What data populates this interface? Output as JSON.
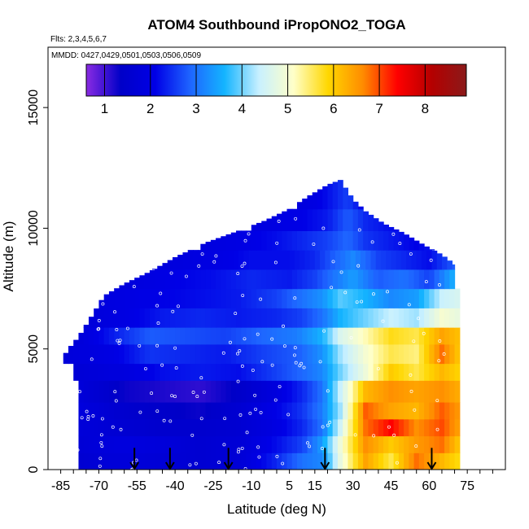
{
  "chart_data": {
    "type": "heatmap",
    "title": "ATOM4 Southbound iPropONO2_TOGA",
    "flights_note": "Flts: 2,3,4,5,6,7",
    "dates_note": "MMDD: 0427,0429,0501,0503,0506,0509",
    "xlabel": "Latitude (deg N)",
    "ylabel": "Altitude (m)",
    "xlim": [
      -90,
      90
    ],
    "ylim": [
      0,
      17500
    ],
    "x_ticks": [
      -85,
      -70,
      -55,
      -40,
      -25,
      -10,
      5,
      15,
      30,
      45,
      60,
      75
    ],
    "y_ticks": [
      0,
      5000,
      10000,
      15000
    ],
    "colorbar": {
      "min": 0.6,
      "max": 8.9,
      "ticks": [
        1,
        2,
        3,
        4,
        5,
        6,
        7,
        8
      ],
      "colors": [
        "#8a2be2",
        "#0000c8",
        "#0000e6",
        "#1e64ff",
        "#14b4ff",
        "#c8f0ff",
        "#ffffc8",
        "#ffd700",
        "#ff8c00",
        "#ff0000",
        "#b40000",
        "#8b1a1a"
      ]
    },
    "profile_arrows_lat": [
      -56,
      -42,
      -19,
      19,
      61
    ],
    "envelope_top": [
      [
        -85,
        4500
      ],
      [
        -82,
        5000
      ],
      [
        -78,
        5500
      ],
      [
        -75,
        6000
      ],
      [
        -72,
        6500
      ],
      [
        -68,
        7200
      ],
      [
        -60,
        7700
      ],
      [
        -50,
        8200
      ],
      [
        -40,
        8800
      ],
      [
        -28,
        9400
      ],
      [
        -15,
        9900
      ],
      [
        -5,
        10300
      ],
      [
        5,
        10800
      ],
      [
        12,
        11300
      ],
      [
        20,
        11800
      ],
      [
        25,
        12000
      ],
      [
        30,
        11200
      ],
      [
        35,
        10700
      ],
      [
        42,
        10200
      ],
      [
        50,
        9800
      ],
      [
        58,
        9300
      ],
      [
        65,
        8900
      ],
      [
        70,
        8500
      ]
    ],
    "layers": [
      {
        "alt": [
          0,
          700
        ],
        "lats": [
          -78,
          -60,
          -45,
          -30,
          -15,
          0,
          10,
          18,
          25,
          35,
          45,
          55,
          65,
          72
        ],
        "values": [
          1.6,
          1.8,
          1.7,
          1.6,
          1.7,
          2.4,
          3.0,
          3.2,
          4.8,
          6.4,
          5.6,
          6.8,
          6.2,
          5.8
        ]
      },
      {
        "alt": [
          700,
          1400
        ],
        "lats": [
          -78,
          -60,
          -45,
          -30,
          -15,
          0,
          10,
          18,
          25,
          35,
          45,
          55,
          65,
          72
        ],
        "values": [
          1.7,
          1.9,
          1.8,
          1.6,
          1.7,
          2.2,
          2.6,
          3.4,
          4.9,
          6.6,
          6.0,
          6.5,
          6.8,
          6.0
        ]
      },
      {
        "alt": [
          1400,
          2100
        ],
        "lats": [
          -78,
          -60,
          -45,
          -30,
          -15,
          0,
          10,
          18,
          25,
          35,
          45,
          55,
          65,
          72
        ],
        "values": [
          1.8,
          1.6,
          1.5,
          1.5,
          1.6,
          2.0,
          2.4,
          3.0,
          4.5,
          6.8,
          7.4,
          6.6,
          7.0,
          6.4
        ]
      },
      {
        "alt": [
          2100,
          2800
        ],
        "lats": [
          -78,
          -60,
          -45,
          -30,
          -15,
          0,
          10,
          18,
          25,
          35,
          45,
          55,
          65,
          72
        ],
        "values": [
          1.9,
          1.5,
          1.4,
          1.3,
          1.6,
          2.1,
          2.5,
          3.1,
          4.2,
          6.9,
          6.4,
          6.2,
          6.9,
          6.5
        ]
      },
      {
        "alt": [
          2800,
          3700
        ],
        "lats": [
          -78,
          -60,
          -45,
          -30,
          -15,
          0,
          10,
          18,
          25,
          35,
          45,
          55,
          65,
          72
        ],
        "values": [
          1.8,
          1.3,
          1.2,
          1.1,
          1.4,
          1.9,
          2.4,
          3.0,
          4.4,
          6.2,
          6.6,
          6.4,
          6.6,
          6.3
        ]
      },
      {
        "alt": [
          3700,
          4400
        ],
        "lats": [
          -80,
          -60,
          -45,
          -30,
          -15,
          0,
          10,
          18,
          25,
          35,
          45,
          55,
          65,
          72
        ],
        "values": [
          1.7,
          1.9,
          2.2,
          2.3,
          2.2,
          2.6,
          2.9,
          3.2,
          4.0,
          4.9,
          6.0,
          5.6,
          6.2,
          5.9
        ]
      },
      {
        "alt": [
          4400,
          5200
        ],
        "lats": [
          -84,
          -65,
          -50,
          -35,
          -20,
          -5,
          8,
          18,
          25,
          35,
          45,
          55,
          65,
          72
        ],
        "values": [
          1.8,
          2.0,
          2.5,
          2.4,
          2.3,
          2.6,
          2.8,
          3.3,
          4.2,
          5.0,
          5.6,
          5.4,
          6.8,
          6.0
        ]
      },
      {
        "alt": [
          5200,
          5900
        ],
        "lats": [
          -80,
          -65,
          -50,
          -35,
          -20,
          -5,
          8,
          18,
          25,
          35,
          45,
          55,
          65,
          72
        ],
        "values": [
          1.7,
          2.3,
          2.8,
          2.7,
          2.6,
          2.9,
          3.1,
          3.6,
          4.6,
          5.2,
          5.8,
          5.6,
          6.4,
          6.1
        ]
      },
      {
        "alt": [
          5900,
          6700
        ],
        "lats": [
          -76,
          -60,
          -45,
          -30,
          -15,
          0,
          10,
          18,
          25,
          35,
          45,
          55,
          65,
          72
        ],
        "values": [
          1.8,
          2.0,
          2.3,
          2.4,
          2.3,
          2.4,
          2.6,
          3.0,
          3.6,
          4.0,
          4.4,
          4.2,
          5.0,
          4.8
        ]
      },
      {
        "alt": [
          6700,
          7500
        ],
        "lats": [
          -72,
          -60,
          -45,
          -30,
          -15,
          0,
          10,
          18,
          25,
          35,
          45,
          55,
          65,
          72
        ],
        "values": [
          1.9,
          2.0,
          2.1,
          2.2,
          2.3,
          2.6,
          3.0,
          3.3,
          3.9,
          3.6,
          3.2,
          3.4,
          4.4,
          4.6
        ]
      },
      {
        "alt": [
          7500,
          8300
        ],
        "lats": [
          -68,
          -55,
          -40,
          -25,
          -10,
          5,
          15,
          22,
          30,
          40,
          50,
          60,
          70
        ],
        "values": [
          1.8,
          1.9,
          2.1,
          2.2,
          2.4,
          2.3,
          2.6,
          3.0,
          3.4,
          2.8,
          3.0,
          2.6,
          3.6
        ]
      },
      {
        "alt": [
          8300,
          9100
        ],
        "lats": [
          -55,
          -40,
          -25,
          -10,
          5,
          15,
          22,
          30,
          40,
          50,
          60,
          70
        ],
        "values": [
          1.8,
          1.9,
          2.0,
          2.2,
          2.2,
          2.4,
          2.8,
          3.2,
          2.6,
          2.4,
          2.2,
          2.8
        ]
      },
      {
        "alt": [
          9100,
          9900
        ],
        "lats": [
          -30,
          -15,
          0,
          10,
          20,
          28,
          35,
          45,
          55,
          65
        ],
        "values": [
          1.9,
          2.0,
          2.2,
          2.4,
          2.6,
          2.9,
          2.5,
          2.3,
          2.1,
          2.4
        ]
      },
      {
        "alt": [
          9900,
          10800
        ],
        "lats": [
          -10,
          0,
          10,
          20,
          28,
          35,
          45,
          55
        ],
        "values": [
          1.9,
          2.0,
          2.1,
          2.3,
          2.8,
          2.4,
          2.2,
          2.0
        ]
      },
      {
        "alt": [
          10800,
          12000
        ],
        "lats": [
          8,
          15,
          22,
          28,
          34
        ],
        "values": [
          1.9,
          2.0,
          2.3,
          2.6,
          2.1
        ]
      }
    ]
  }
}
